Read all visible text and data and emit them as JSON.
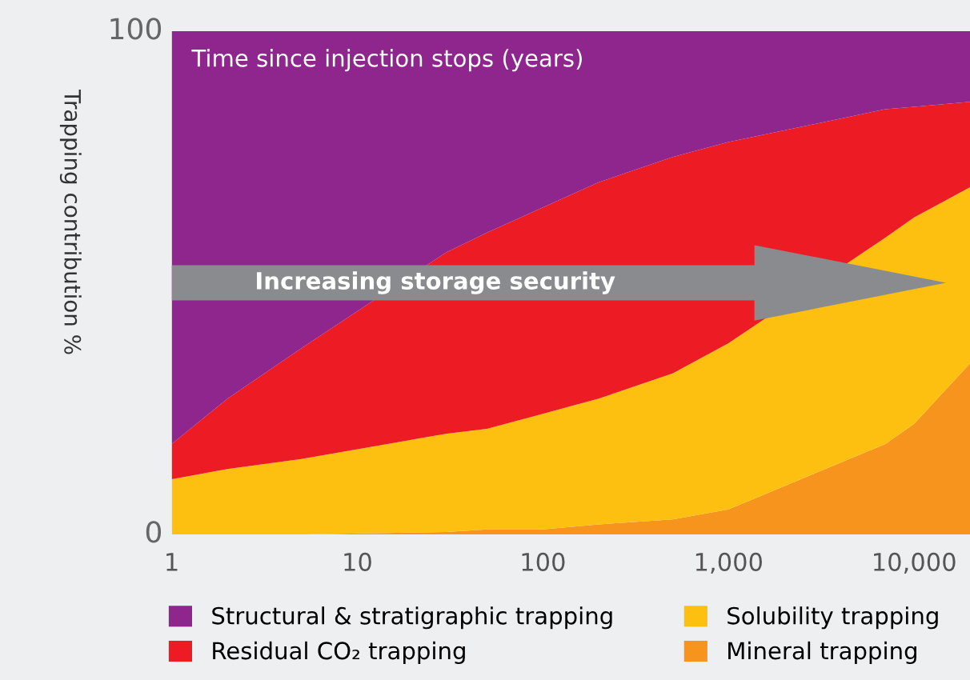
{
  "chart_data": {
    "type": "area",
    "stacked": true,
    "xlabel": "Time since injection stops (years)",
    "ylabel": "Trapping contribution %",
    "x": [
      1,
      2,
      5,
      30,
      50,
      100,
      200,
      500,
      1000,
      7000,
      10000,
      20000
    ],
    "series": [
      {
        "name": "Mineral trapping",
        "color": "#f7941d",
        "values": [
          0,
          0,
          0,
          0.5,
          1,
          1,
          2,
          3,
          5,
          18,
          22,
          34
        ]
      },
      {
        "name": "Solubility trapping",
        "color": "#fdc010",
        "values": [
          11,
          13,
          15,
          19.5,
          20,
          23,
          25,
          29,
          33,
          41,
          41,
          35
        ]
      },
      {
        "name": "Residual CO₂ trapping",
        "color": "#ed1c24",
        "values": [
          7,
          14,
          22,
          36,
          39,
          41,
          43,
          43,
          40,
          25.5,
          22,
          17
        ]
      },
      {
        "name": "Structural & stratigraphic trapping",
        "color": "#8e268d",
        "values": [
          82,
          73,
          63,
          44,
          40,
          35,
          30,
          25,
          22,
          15.5,
          15,
          14
        ]
      }
    ],
    "log": "x",
    "xlim": [
      1,
      20000
    ],
    "ylim": [
      0,
      100
    ],
    "xticks": [
      1,
      10,
      100,
      {
        "value": 1000,
        "label": "1,000"
      },
      {
        "value": 10000,
        "label": "10,000"
      }
    ],
    "yticks": [
      0,
      100
    ],
    "grid": false,
    "legend": "bottom",
    "annotations": [
      "Increasing storage security"
    ]
  }
}
